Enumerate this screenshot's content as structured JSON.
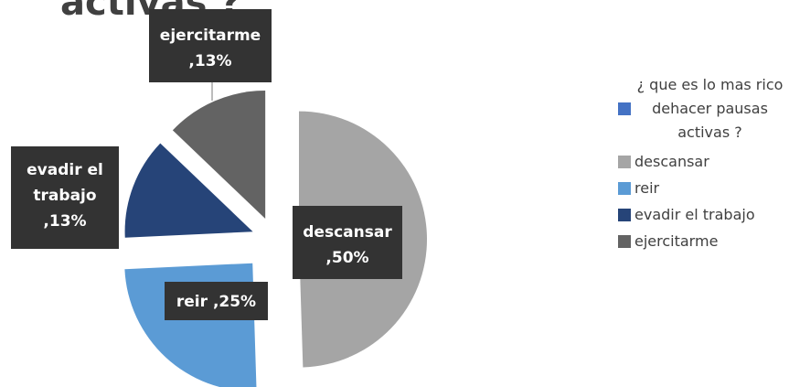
{
  "chart_data": {
    "type": "pie",
    "title": "activas ?",
    "series_name": "¿ que es lo mas rico dehacer pausas activas ?",
    "series_color": "#4472c4",
    "categories": [
      "descansar",
      "reir",
      "evadir el trabajo",
      "ejercitarme"
    ],
    "values": [
      50,
      25,
      13,
      13
    ],
    "value_labels": [
      ",50%",
      ",25%",
      ",13%",
      ",13%"
    ],
    "colors": [
      "#a5a5a5",
      "#5b9bd5",
      "#264478",
      "#636363"
    ]
  }
}
